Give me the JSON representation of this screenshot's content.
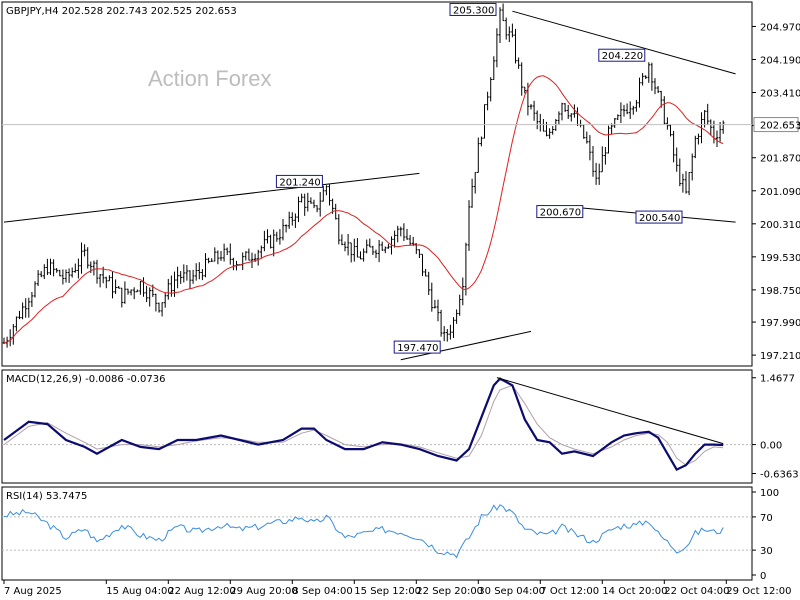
{
  "symbol_header": "GBPJPY,H4  202.528 202.743 202.525 202.653",
  "watermark": "Action Forex",
  "chart_data": {
    "type": "ohlc",
    "price_panel": {
      "ylim": [
        197.0,
        205.5
      ],
      "y_ticks": [
        "204.970",
        "204.190",
        "203.410",
        "202.630",
        "201.870",
        "201.090",
        "200.310",
        "199.530",
        "198.750",
        "197.990",
        "197.210"
      ],
      "current_price": "202.653",
      "ma_color": "#e02020",
      "bar_color": "#000000",
      "anchors": [
        [
          0,
          197.5
        ],
        [
          8,
          198.6
        ],
        [
          14,
          199.3
        ],
        [
          20,
          199.0
        ],
        [
          26,
          199.6
        ],
        [
          30,
          199.2
        ],
        [
          38,
          198.6
        ],
        [
          44,
          198.9
        ],
        [
          50,
          198.4
        ],
        [
          56,
          199.1
        ],
        [
          60,
          199.0
        ],
        [
          70,
          199.6
        ],
        [
          76,
          199.4
        ],
        [
          82,
          199.7
        ],
        [
          86,
          199.9
        ],
        [
          92,
          200.3
        ],
        [
          96,
          200.9
        ],
        [
          100,
          200.6
        ],
        [
          104,
          201.2
        ],
        [
          108,
          200.1
        ],
        [
          114,
          199.5
        ],
        [
          118,
          199.7
        ],
        [
          124,
          199.9
        ],
        [
          128,
          200.2
        ],
        [
          134,
          199.5
        ],
        [
          138,
          198.5
        ],
        [
          142,
          197.6
        ],
        [
          145,
          198.0
        ],
        [
          148,
          199.0
        ],
        [
          150,
          200.8
        ],
        [
          154,
          202.5
        ],
        [
          158,
          204.3
        ],
        [
          160,
          205.2
        ],
        [
          164,
          204.6
        ],
        [
          168,
          203.3
        ],
        [
          172,
          202.7
        ],
        [
          175,
          202.3
        ],
        [
          180,
          203.2
        ],
        [
          184,
          202.8
        ],
        [
          188,
          202.2
        ],
        [
          191,
          201.3
        ],
        [
          195,
          202.4
        ],
        [
          200,
          203.0
        ],
        [
          204,
          203.3
        ],
        [
          208,
          204.1
        ],
        [
          211,
          203.3
        ],
        [
          214,
          202.6
        ],
        [
          217,
          201.6
        ],
        [
          220,
          201.0
        ],
        [
          223,
          202.3
        ],
        [
          226,
          202.9
        ],
        [
          229,
          202.4
        ],
        [
          232,
          202.65
        ]
      ],
      "annotations": [
        {
          "label": "201.240",
          "index": 104,
          "value": 201.24
        },
        {
          "label": "197.470",
          "index": 142,
          "value": 197.47
        },
        {
          "label": "205.300",
          "index": 160,
          "value": 205.3
        },
        {
          "label": "200.670",
          "index": 188,
          "value": 200.67
        },
        {
          "label": "204.220",
          "index": 208,
          "value": 204.22
        },
        {
          "label": "200.540",
          "index": 220,
          "value": 200.54
        }
      ],
      "trendlines": [
        [
          [
            0,
            200.35
          ],
          [
            134,
            201.5
          ]
        ],
        [
          [
            128,
            197.1
          ],
          [
            170,
            197.77
          ]
        ],
        [
          [
            164,
            205.33
          ],
          [
            236,
            203.85
          ]
        ],
        [
          [
            184,
            200.7
          ],
          [
            236,
            200.35
          ]
        ]
      ]
    },
    "macd_panel": {
      "title": "MACD(12,26,9) -0.0086 -0.0736",
      "ylim": [
        -0.8,
        1.55
      ],
      "y_ticks": [
        "1.4677",
        "0.00",
        "-0.6363"
      ],
      "series": [
        {
          "color": "#0b0b70",
          "points": [
            [
              0,
              0.1
            ],
            [
              8,
              0.5
            ],
            [
              14,
              0.45
            ],
            [
              20,
              0.1
            ],
            [
              26,
              -0.05
            ],
            [
              30,
              -0.2
            ],
            [
              38,
              0.1
            ],
            [
              44,
              -0.05
            ],
            [
              50,
              -0.1
            ],
            [
              56,
              0.1
            ],
            [
              62,
              0.1
            ],
            [
              70,
              0.2
            ],
            [
              76,
              0.1
            ],
            [
              82,
              0.0
            ],
            [
              90,
              0.1
            ],
            [
              96,
              0.35
            ],
            [
              100,
              0.35
            ],
            [
              104,
              0.1
            ],
            [
              110,
              -0.1
            ],
            [
              116,
              -0.1
            ],
            [
              122,
              0.05
            ],
            [
              128,
              0.0
            ],
            [
              134,
              -0.1
            ],
            [
              140,
              -0.25
            ],
            [
              146,
              -0.35
            ],
            [
              150,
              -0.1
            ],
            [
              154,
              0.6
            ],
            [
              158,
              1.3
            ],
            [
              160,
              1.45
            ],
            [
              164,
              1.3
            ],
            [
              168,
              0.55
            ],
            [
              172,
              0.1
            ],
            [
              176,
              0.05
            ],
            [
              180,
              -0.2
            ],
            [
              184,
              -0.15
            ],
            [
              190,
              -0.25
            ],
            [
              196,
              0.05
            ],
            [
              200,
              0.2
            ],
            [
              204,
              0.25
            ],
            [
              208,
              0.28
            ],
            [
              211,
              0.15
            ],
            [
              214,
              -0.2
            ],
            [
              217,
              -0.55
            ],
            [
              220,
              -0.45
            ],
            [
              223,
              -0.2
            ],
            [
              226,
              0.0
            ],
            [
              229,
              0.0
            ],
            [
              232,
              -0.01
            ]
          ]
        },
        {
          "color": "#b0a0a8",
          "points": [
            [
              0,
              0.0
            ],
            [
              8,
              0.4
            ],
            [
              14,
              0.48
            ],
            [
              20,
              0.25
            ],
            [
              26,
              0.05
            ],
            [
              30,
              -0.1
            ],
            [
              38,
              0.0
            ],
            [
              44,
              0.0
            ],
            [
              50,
              -0.05
            ],
            [
              56,
              0.0
            ],
            [
              62,
              0.08
            ],
            [
              70,
              0.15
            ],
            [
              76,
              0.12
            ],
            [
              82,
              0.05
            ],
            [
              90,
              0.05
            ],
            [
              96,
              0.25
            ],
            [
              100,
              0.32
            ],
            [
              104,
              0.2
            ],
            [
              110,
              0.0
            ],
            [
              116,
              -0.05
            ],
            [
              122,
              0.0
            ],
            [
              128,
              0.02
            ],
            [
              134,
              -0.05
            ],
            [
              140,
              -0.18
            ],
            [
              146,
              -0.3
            ],
            [
              150,
              -0.25
            ],
            [
              154,
              0.2
            ],
            [
              158,
              0.95
            ],
            [
              160,
              1.2
            ],
            [
              164,
              1.3
            ],
            [
              168,
              0.9
            ],
            [
              172,
              0.45
            ],
            [
              176,
              0.15
            ],
            [
              180,
              0.0
            ],
            [
              184,
              -0.1
            ],
            [
              190,
              -0.2
            ],
            [
              196,
              -0.05
            ],
            [
              200,
              0.1
            ],
            [
              204,
              0.2
            ],
            [
              208,
              0.25
            ],
            [
              211,
              0.22
            ],
            [
              214,
              0.05
            ],
            [
              217,
              -0.3
            ],
            [
              220,
              -0.45
            ],
            [
              223,
              -0.35
            ],
            [
              226,
              -0.15
            ],
            [
              229,
              -0.05
            ],
            [
              232,
              -0.07
            ]
          ]
        }
      ],
      "trendline": [
        [
          159,
          1.47
        ],
        [
          232,
          0.02
        ]
      ]
    },
    "rsi_panel": {
      "title": "RSI(14) 53.7475",
      "ylim": [
        0,
        100
      ],
      "y_ticks": [
        "100",
        "70",
        "30",
        "0"
      ],
      "levels": [
        70,
        30
      ],
      "color": "#3a8de0",
      "points": [
        [
          0,
          72
        ],
        [
          8,
          76
        ],
        [
          14,
          62
        ],
        [
          20,
          45
        ],
        [
          26,
          56
        ],
        [
          30,
          40
        ],
        [
          38,
          60
        ],
        [
          44,
          48
        ],
        [
          50,
          42
        ],
        [
          56,
          58
        ],
        [
          62,
          52
        ],
        [
          70,
          60
        ],
        [
          76,
          55
        ],
        [
          82,
          58
        ],
        [
          86,
          62
        ],
        [
          92,
          66
        ],
        [
          96,
          70
        ],
        [
          100,
          62
        ],
        [
          104,
          70
        ],
        [
          110,
          45
        ],
        [
          116,
          50
        ],
        [
          122,
          55
        ],
        [
          128,
          52
        ],
        [
          134,
          45
        ],
        [
          140,
          30
        ],
        [
          146,
          25
        ],
        [
          150,
          45
        ],
        [
          154,
          70
        ],
        [
          158,
          80
        ],
        [
          160,
          84
        ],
        [
          164,
          75
        ],
        [
          168,
          55
        ],
        [
          172,
          50
        ],
        [
          176,
          48
        ],
        [
          180,
          58
        ],
        [
          184,
          50
        ],
        [
          190,
          40
        ],
        [
          196,
          55
        ],
        [
          200,
          60
        ],
        [
          204,
          60
        ],
        [
          208,
          66
        ],
        [
          211,
          50
        ],
        [
          214,
          40
        ],
        [
          217,
          30
        ],
        [
          220,
          35
        ],
        [
          223,
          50
        ],
        [
          226,
          55
        ],
        [
          229,
          52
        ],
        [
          232,
          54
        ]
      ]
    },
    "x_tick_labels": [
      {
        "label": "7 Aug 2025",
        "index": 0
      },
      {
        "label": "15 Aug 04:00",
        "index": 33
      },
      {
        "label": "22 Aug 12:00",
        "index": 53
      },
      {
        "label": "29 Aug 20:00",
        "index": 73
      },
      {
        "label": "8 Sep 04:00",
        "index": 93
      },
      {
        "label": "15 Sep 12:00",
        "index": 113
      },
      {
        "label": "22 Sep 20:00",
        "index": 133
      },
      {
        "label": "30 Sep 04:00",
        "index": 153
      },
      {
        "label": "7 Oct 12:00",
        "index": 173
      },
      {
        "label": "14 Oct 20:00",
        "index": 193
      },
      {
        "label": "22 Oct 04:00",
        "index": 213
      },
      {
        "label": "29 Oct 12:00",
        "index": 233
      }
    ]
  }
}
